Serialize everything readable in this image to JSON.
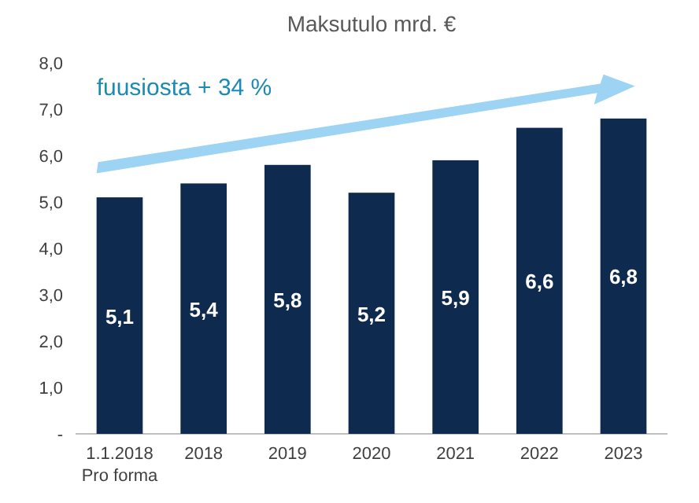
{
  "chart_data": {
    "type": "bar",
    "title": "Maksutulo mrd. €",
    "categories": [
      "1.1.2018\nPro forma",
      "2018",
      "2019",
      "2020",
      "2021",
      "2022",
      "2023"
    ],
    "values": [
      5.1,
      5.4,
      5.8,
      5.2,
      5.9,
      6.6,
      6.8
    ],
    "value_labels": [
      "5,1",
      "5,4",
      "5,8",
      "5,2",
      "5,9",
      "6,6",
      "6,8"
    ],
    "color": "#0e2a4f",
    "ylim": [
      0,
      8
    ],
    "yticks": [
      {
        "value": 0,
        "label": "-"
      },
      {
        "value": 1,
        "label": "1,0"
      },
      {
        "value": 2,
        "label": "2,0"
      },
      {
        "value": 3,
        "label": "3,0"
      },
      {
        "value": 4,
        "label": "4,0"
      },
      {
        "value": 5,
        "label": "5,0"
      },
      {
        "value": 6,
        "label": "6,0"
      },
      {
        "value": 7,
        "label": "7,0"
      },
      {
        "value": 8,
        "label": "8,0"
      }
    ],
    "annotations": [
      "fuusiosta + 34 %"
    ],
    "grid": false
  }
}
